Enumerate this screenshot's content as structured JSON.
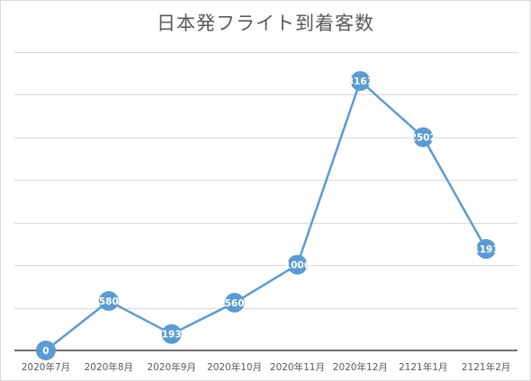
{
  "chart_data": {
    "type": "line",
    "title": "日本発フライト到着客数",
    "categories": [
      "2020年7月",
      "2020年8月",
      "2020年9月",
      "2020年10月",
      "2020年11月",
      "2020年12月",
      "2121年1月",
      "2121年2月"
    ],
    "series": [
      {
        "values": [
          0,
          580,
          193,
          560,
          1006,
          3161,
          2502,
          1191
        ]
      }
    ],
    "data_labels": [
      "0",
      "580",
      "193",
      "560",
      "1006",
      "3161",
      "2502",
      "1191"
    ],
    "ylim": [
      0,
      3500
    ],
    "y_gridline_step": 500,
    "y_tick_labels_shown": false,
    "grid": true,
    "colors": {
      "series": "#5b9bd5",
      "gridline": "#d9d9d9",
      "axis": "#404040",
      "text": "#595959"
    }
  }
}
